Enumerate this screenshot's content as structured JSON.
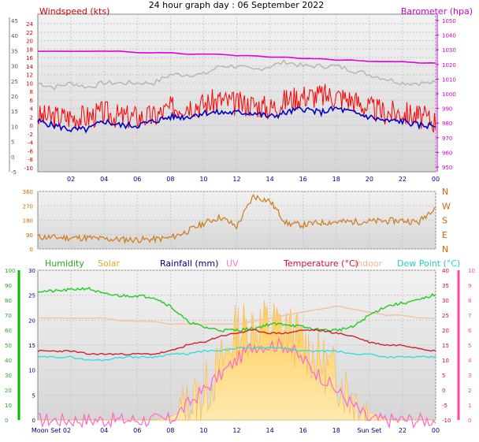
{
  "title": "24 hour graph day : 06 September 2022",
  "colors": {
    "wind_avg": "#0000cc",
    "wind_gust": "#ff0000",
    "wind_max": "#b4b4b4",
    "pressure": "#e000e0",
    "direction": "#d07818",
    "humidity": "#22cc22",
    "solar": "#ffaa00",
    "rainfall": "#000080",
    "uv": "#ff66cc",
    "temperature": "#cc2233",
    "indoor": "#f4c4a4",
    "dewpoint": "#33dddd",
    "left_axis_green": "#00bb00",
    "right_axis_pink": "#ff44aa"
  },
  "labels": {
    "windspeed": "Windspeed (kts)",
    "barometer": "Barometer (hpa)",
    "humidity": "Humidity",
    "solar": "Solar",
    "rainfall": "Rainfall (mm)",
    "uv": "UV",
    "temperature": "Temperature (°C)",
    "indoor": "Indoor",
    "dewpoint": "Dew Point (°C)",
    "moonset": "Moon Set",
    "sunset": "Sun Set"
  },
  "chart_data": [
    {
      "type": "line",
      "panel": "wind",
      "x_ticks": [
        "02",
        "04",
        "06",
        "08",
        "10",
        "12",
        "14",
        "16",
        "18",
        "20",
        "22",
        "00"
      ],
      "y_outer_ticks": [
        -5,
        0,
        5,
        10,
        15,
        20,
        25,
        30,
        35,
        40,
        45
      ],
      "y_inner_ticks": [
        -10,
        -8,
        -6,
        -4,
        -2,
        0,
        2,
        4,
        6,
        8,
        10,
        12,
        14,
        16,
        18,
        20,
        22,
        24
      ],
      "y_right_ticks": [
        950,
        960,
        970,
        980,
        990,
        1000,
        1010,
        1020,
        1030,
        1040,
        1050
      ],
      "series": [
        {
          "name": "Windspeed (kts)",
          "values_hourly": [
            1,
            0,
            -1,
            -1,
            1,
            0,
            0,
            1,
            2,
            2,
            3,
            3,
            3,
            3,
            2,
            3,
            4,
            3,
            4,
            3,
            2,
            1,
            1,
            0,
            0
          ]
        },
        {
          "values_hourly": [
            2,
            2,
            2,
            2,
            3,
            2,
            2,
            2,
            4,
            5,
            5,
            6,
            5,
            5,
            4,
            6,
            7,
            7,
            7,
            6,
            4,
            3,
            3,
            2,
            1
          ]
        },
        {
          "values_hourly": [
            10,
            9,
            10,
            9,
            10,
            10,
            10,
            10,
            12,
            12,
            12,
            14,
            14,
            13,
            14,
            15,
            14,
            14,
            14,
            13,
            12,
            11,
            10,
            10,
            10
          ]
        },
        {
          "name": "Barometer (hpa)",
          "values_hourly": [
            1029,
            1029,
            1029,
            1029,
            1029,
            1029,
            1028,
            1028,
            1028,
            1027,
            1027,
            1027,
            1026,
            1026,
            1025,
            1025,
            1024,
            1024,
            1023,
            1023,
            1022,
            1022,
            1022,
            1021,
            1021
          ]
        }
      ]
    },
    {
      "type": "line",
      "panel": "direction",
      "y_ticks": [
        0,
        90,
        180,
        270,
        360
      ],
      "y_right_ticks": [
        "N",
        "W",
        "S",
        "E",
        "N"
      ],
      "series": [
        {
          "values_hourly": [
            75,
            72,
            70,
            70,
            62,
            60,
            58,
            60,
            70,
            110,
            160,
            200,
            140,
            330,
            300,
            160,
            150,
            165,
            170,
            170,
            172,
            175,
            178,
            168,
            270
          ]
        }
      ]
    },
    {
      "type": "line",
      "panel": "weather",
      "x_ticks": [
        "Moon Set 02",
        "04",
        "06",
        "08",
        "10",
        "12",
        "14",
        "16",
        "18",
        "Sun Set",
        "22",
        "00"
      ],
      "y_humidity_ticks": [
        0,
        10,
        20,
        30,
        40,
        50,
        60,
        70,
        80,
        90,
        100
      ],
      "y_rain_ticks": [
        0,
        5,
        10,
        15,
        20,
        25,
        30
      ],
      "y_temp_ticks": [
        -10,
        -5,
        0,
        5,
        10,
        15,
        20,
        25,
        30,
        35,
        40
      ],
      "y_uv_ticks": [
        0,
        1,
        2,
        3,
        4,
        5,
        6,
        7,
        8,
        9,
        10
      ],
      "series": [
        {
          "name": "Humidity",
          "values_hourly": [
            86,
            86,
            87,
            88,
            84,
            83,
            83,
            82,
            76,
            66,
            62,
            60,
            60,
            61,
            64,
            64,
            62,
            60,
            60,
            62,
            70,
            76,
            78,
            80,
            84
          ]
        },
        {
          "name": "Solar",
          "values_hourly": [
            0,
            0,
            0,
            0,
            0,
            0,
            0,
            0,
            20,
            80,
            180,
            350,
            600,
            620,
            640,
            600,
            500,
            400,
            300,
            150,
            50,
            0,
            0,
            0,
            0
          ]
        },
        {
          "name": "UV",
          "values_hourly": [
            0,
            0,
            0,
            0,
            0,
            0,
            0,
            0,
            0,
            1,
            2,
            3,
            4,
            5,
            5,
            5,
            4,
            3,
            2,
            1,
            0,
            0,
            0,
            0,
            0
          ]
        },
        {
          "name": "Temperature (°C)",
          "values_hourly": [
            13,
            13,
            13,
            12,
            12,
            12,
            12,
            12,
            13,
            15,
            16,
            18,
            19,
            20,
            19,
            19,
            20,
            20,
            19,
            18,
            16,
            15,
            15,
            14,
            13
          ]
        },
        {
          "name": "Indoor",
          "values_hourly": [
            24,
            24,
            24,
            24,
            24,
            23,
            23,
            23,
            22,
            22,
            22,
            22,
            22,
            23,
            24,
            25,
            26,
            27,
            28,
            27,
            26,
            25,
            25,
            24,
            24
          ]
        },
        {
          "name": "Dew Point (°C)",
          "values_hourly": [
            11,
            11,
            11,
            10,
            10,
            11,
            11,
            11,
            12,
            12,
            13,
            13,
            14,
            14,
            14,
            14,
            13,
            13,
            13,
            12,
            12,
            11,
            11,
            11,
            11
          ]
        }
      ]
    }
  ]
}
